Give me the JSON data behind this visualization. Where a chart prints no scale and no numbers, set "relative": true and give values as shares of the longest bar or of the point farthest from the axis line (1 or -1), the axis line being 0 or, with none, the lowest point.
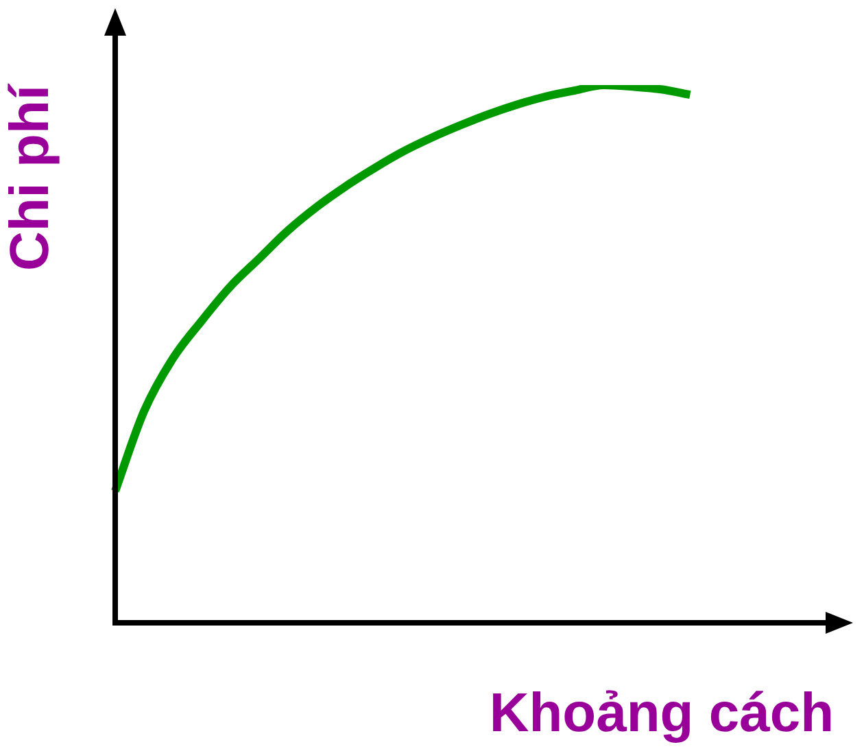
{
  "chart_data": {
    "type": "line",
    "relative": true,
    "xlabel": "Khoảng cách",
    "ylabel": "Chi phí",
    "categories": [
      null,
      null,
      null,
      null,
      null,
      null,
      null,
      null,
      null,
      null,
      null,
      null,
      null,
      null,
      null,
      null,
      null,
      null,
      null,
      null,
      null,
      null,
      null,
      null,
      null,
      null
    ],
    "series": [
      {
        "color": "#009900",
        "values": [
          0.245,
          0.393,
          0.491,
          0.561,
          0.625,
          0.677,
          0.729,
          0.773,
          0.811,
          0.845,
          0.876,
          0.902,
          0.925,
          0.946,
          0.964,
          0.979,
          0.99,
          1,
          0.997,
          0.992,
          0.982,
          null,
          null,
          null,
          null,
          null
        ]
      }
    ],
    "grid": false,
    "legend": false,
    "marker": "none",
    "line_style": "solid"
  }
}
